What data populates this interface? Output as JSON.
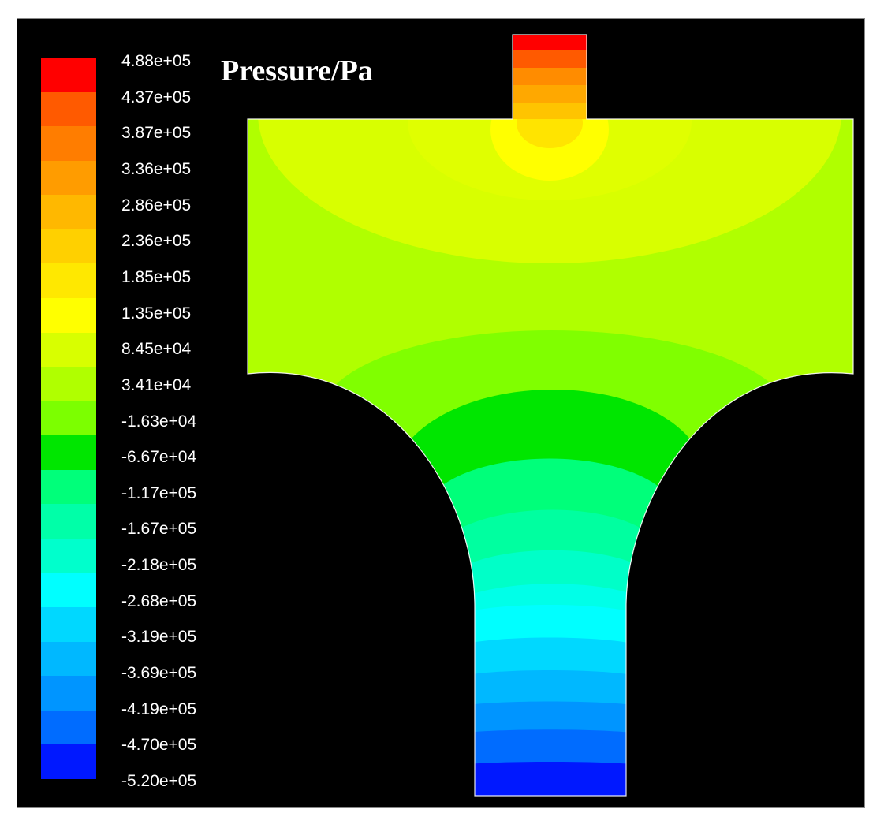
{
  "title": "Pressure/Pa",
  "colorbar": {
    "ticks": [
      "4.88e+05",
      "4.37e+05",
      "3.87e+05",
      "3.36e+05",
      "2.86e+05",
      "2.36e+05",
      "1.85e+05",
      "1.35e+05",
      "8.45e+04",
      "3.41e+04",
      "-1.63e+04",
      "-6.67e+04",
      "-1.17e+05",
      "-1.67e+05",
      "-2.18e+05",
      "-2.68e+05",
      "-3.19e+05",
      "-3.69e+05",
      "-4.19e+05",
      "-4.70e+05",
      "-5.20e+05"
    ],
    "colors": [
      "#ff0000",
      "#ff5a00",
      "#ff7d00",
      "#ff9c00",
      "#ffb800",
      "#ffd000",
      "#ffe800",
      "#ffff00",
      "#d8ff00",
      "#b0ff00",
      "#7cff00",
      "#00e600",
      "#00ff7a",
      "#00ffa8",
      "#00ffcc",
      "#00ffff",
      "#00d8ff",
      "#00b8ff",
      "#0095ff",
      "#006cff",
      "#0018ff"
    ]
  },
  "colors": {
    "background": "#000000",
    "frame_border": "#888888",
    "text": "#ffffff"
  }
}
